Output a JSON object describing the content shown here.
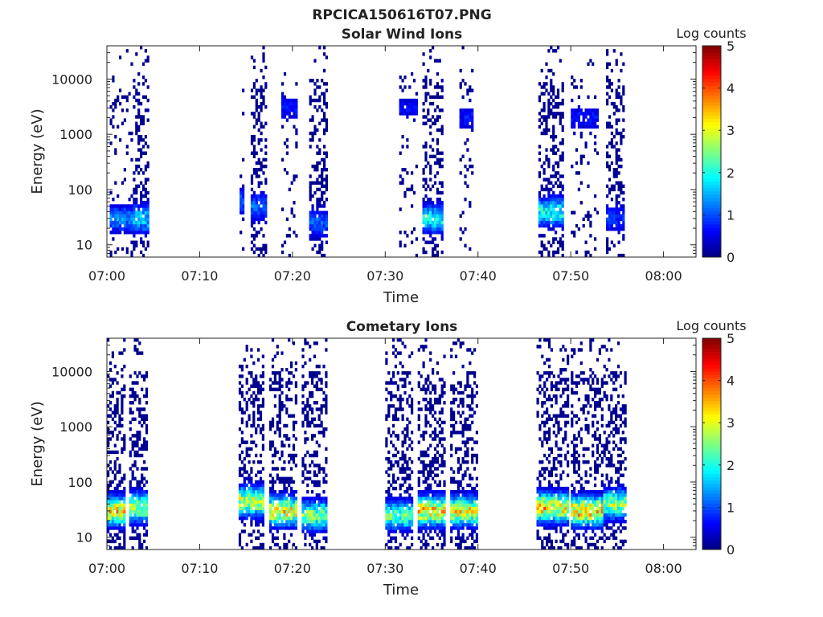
{
  "figure": {
    "title": "RPCICA150616T07.PNG"
  },
  "colorbar": {
    "label": "Log counts",
    "ticks": [
      0,
      1,
      2,
      3,
      4,
      5
    ]
  },
  "chart_data": [
    {
      "type": "heatmap",
      "title": "Solar Wind Ions",
      "xlabel": "Time",
      "ylabel": "Energy (eV)",
      "y_scale": "log",
      "y_ticks": [
        "10",
        "100",
        "1000",
        "10000"
      ],
      "x_ticks": [
        "07:00",
        "07:10",
        "07:20",
        "07:30",
        "07:40",
        "07:50",
        "08:00"
      ],
      "xlim_minutes": [
        0,
        63.5
      ],
      "ylim_eV": [
        6,
        40000
      ],
      "color_range": [
        0,
        5
      ],
      "bursts": [
        {
          "start_min": 0.3,
          "end_min": 2.6,
          "sparse": true,
          "peak_eV": 30,
          "peak_value": 1.5
        },
        {
          "start_min": 2.8,
          "end_min": 4.5,
          "sparse": false,
          "peak_eV": 30,
          "peak_value": 2.0
        },
        {
          "start_min": 14.3,
          "end_min": 14.8,
          "sparse": true,
          "peak_eV": 60,
          "peak_value": 1.2
        },
        {
          "start_min": 15.5,
          "end_min": 17.2,
          "sparse": false,
          "peak_eV": 50,
          "peak_value": 1.3
        },
        {
          "start_min": 18.8,
          "end_min": 20.5,
          "sparse": true,
          "peak_eV": 3000,
          "peak_value": 0.8
        },
        {
          "start_min": 21.8,
          "end_min": 23.6,
          "sparse": false,
          "peak_eV": 25,
          "peak_value": 1.3
        },
        {
          "start_min": 31.5,
          "end_min": 33.4,
          "sparse": true,
          "peak_eV": 3000,
          "peak_value": 0.7
        },
        {
          "start_min": 34.0,
          "end_min": 36.2,
          "sparse": false,
          "peak_eV": 30,
          "peak_value": 2.3
        },
        {
          "start_min": 38.0,
          "end_min": 39.5,
          "sparse": true,
          "peak_eV": 2000,
          "peak_value": 0.8
        },
        {
          "start_min": 46.5,
          "end_min": 49.2,
          "sparse": false,
          "peak_eV": 40,
          "peak_value": 2.3
        },
        {
          "start_min": 50.0,
          "end_min": 52.8,
          "sparse": true,
          "peak_eV": 2000,
          "peak_value": 0.8
        },
        {
          "start_min": 53.8,
          "end_min": 55.8,
          "sparse": false,
          "peak_eV": 30,
          "peak_value": 1.0
        }
      ]
    },
    {
      "type": "heatmap",
      "title": "Cometary Ions",
      "xlabel": "Time",
      "ylabel": "Energy (eV)",
      "y_scale": "log",
      "y_ticks": [
        "10",
        "100",
        "1000",
        "10000"
      ],
      "x_ticks": [
        "07:00",
        "07:10",
        "07:20",
        "07:30",
        "07:40",
        "07:50",
        "08:00"
      ],
      "xlim_minutes": [
        0,
        63.5
      ],
      "ylim_eV": [
        6,
        40000
      ],
      "color_range": [
        0,
        5
      ],
      "bursts": [
        {
          "start_min": 0.0,
          "end_min": 1.8,
          "sparse": false,
          "peak_eV": 30,
          "peak_value": 3.9
        },
        {
          "start_min": 2.4,
          "end_min": 4.4,
          "sparse": false,
          "peak_eV": 35,
          "peak_value": 3.2
        },
        {
          "start_min": 14.2,
          "end_min": 16.8,
          "sparse": false,
          "peak_eV": 45,
          "peak_value": 3.5
        },
        {
          "start_min": 17.5,
          "end_min": 20.5,
          "sparse": false,
          "peak_eV": 30,
          "peak_value": 3.8
        },
        {
          "start_min": 21.0,
          "end_min": 23.6,
          "sparse": false,
          "peak_eV": 25,
          "peak_value": 3.0
        },
        {
          "start_min": 30.0,
          "end_min": 33.0,
          "sparse": false,
          "peak_eV": 25,
          "peak_value": 2.8
        },
        {
          "start_min": 33.5,
          "end_min": 36.5,
          "sparse": false,
          "peak_eV": 30,
          "peak_value": 4.0
        },
        {
          "start_min": 37.0,
          "end_min": 39.8,
          "sparse": false,
          "peak_eV": 30,
          "peak_value": 3.8
        },
        {
          "start_min": 46.3,
          "end_min": 49.8,
          "sparse": false,
          "peak_eV": 35,
          "peak_value": 4.0
        },
        {
          "start_min": 50.0,
          "end_min": 53.3,
          "sparse": false,
          "peak_eV": 30,
          "peak_value": 4.2
        },
        {
          "start_min": 53.5,
          "end_min": 55.8,
          "sparse": false,
          "peak_eV": 40,
          "peak_value": 3.2
        }
      ]
    }
  ]
}
